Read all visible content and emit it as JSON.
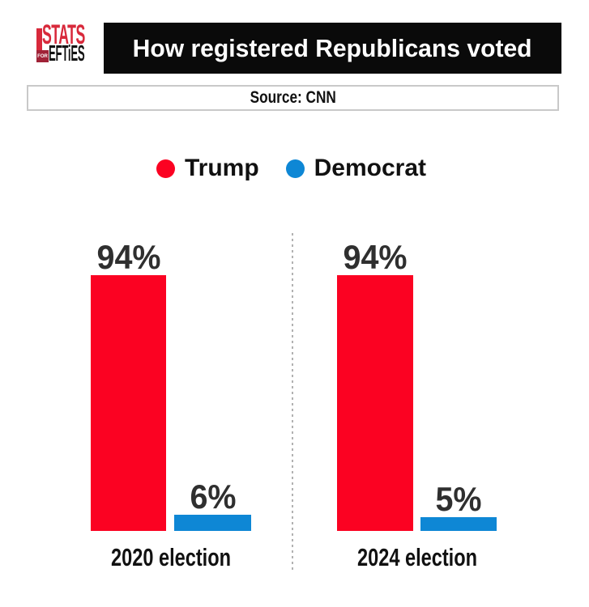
{
  "logo": {
    "name": "Stats for Lefties",
    "line1": "STATS",
    "badge": "FOR",
    "line2": "EFTiES",
    "red": "#d8293b",
    "badge_red": "#a02237"
  },
  "header": {
    "title": "How registered Republicans voted",
    "source": "Source: CNN"
  },
  "chart_data": {
    "type": "bar",
    "title": "How registered Republicans voted",
    "source": "Source: CNN",
    "categories": [
      "2020 election",
      "2024 election"
    ],
    "series": [
      {
        "name": "Trump",
        "color": "#fb0222",
        "values": [
          94,
          94
        ],
        "labels": [
          "94%",
          "94%"
        ]
      },
      {
        "name": "Democrat",
        "color": "#0e87d5",
        "values": [
          6,
          5
        ],
        "labels": [
          "6%",
          "5%"
        ]
      }
    ],
    "ylim": [
      0,
      100
    ],
    "grid": false,
    "legend_position": "top",
    "value_labels": true
  }
}
